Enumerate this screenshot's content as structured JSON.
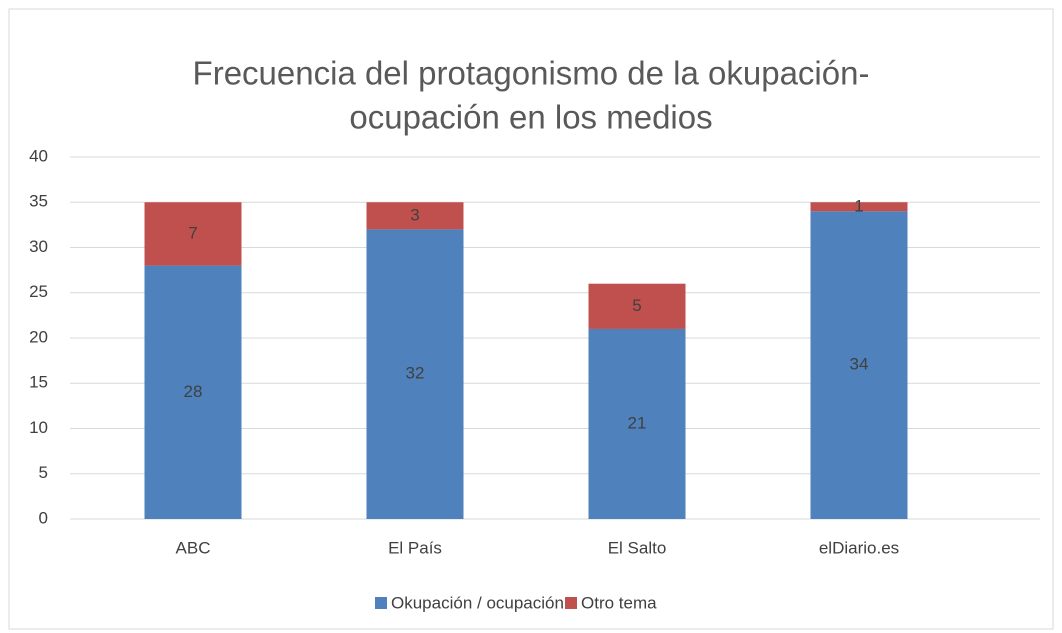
{
  "chart_data": {
    "type": "stacked_bar",
    "title": [
      "Frecuencia del protagonismo de la okupación-",
      "ocupación en los medios"
    ],
    "categories": [
      "ABC",
      "El País",
      "El Salto",
      "elDiario.es"
    ],
    "series": [
      {
        "name": "Okupación / ocupación",
        "color": "#4f81bd",
        "values": [
          28,
          32,
          21,
          34
        ]
      },
      {
        "name": "Otro tema",
        "color": "#c0504d",
        "values": [
          7,
          3,
          5,
          1
        ]
      }
    ],
    "ylim": [
      0,
      40
    ],
    "yticks": [
      0,
      5,
      10,
      15,
      20,
      25,
      30,
      35,
      40
    ],
    "grid": true,
    "legend": "bottom"
  }
}
